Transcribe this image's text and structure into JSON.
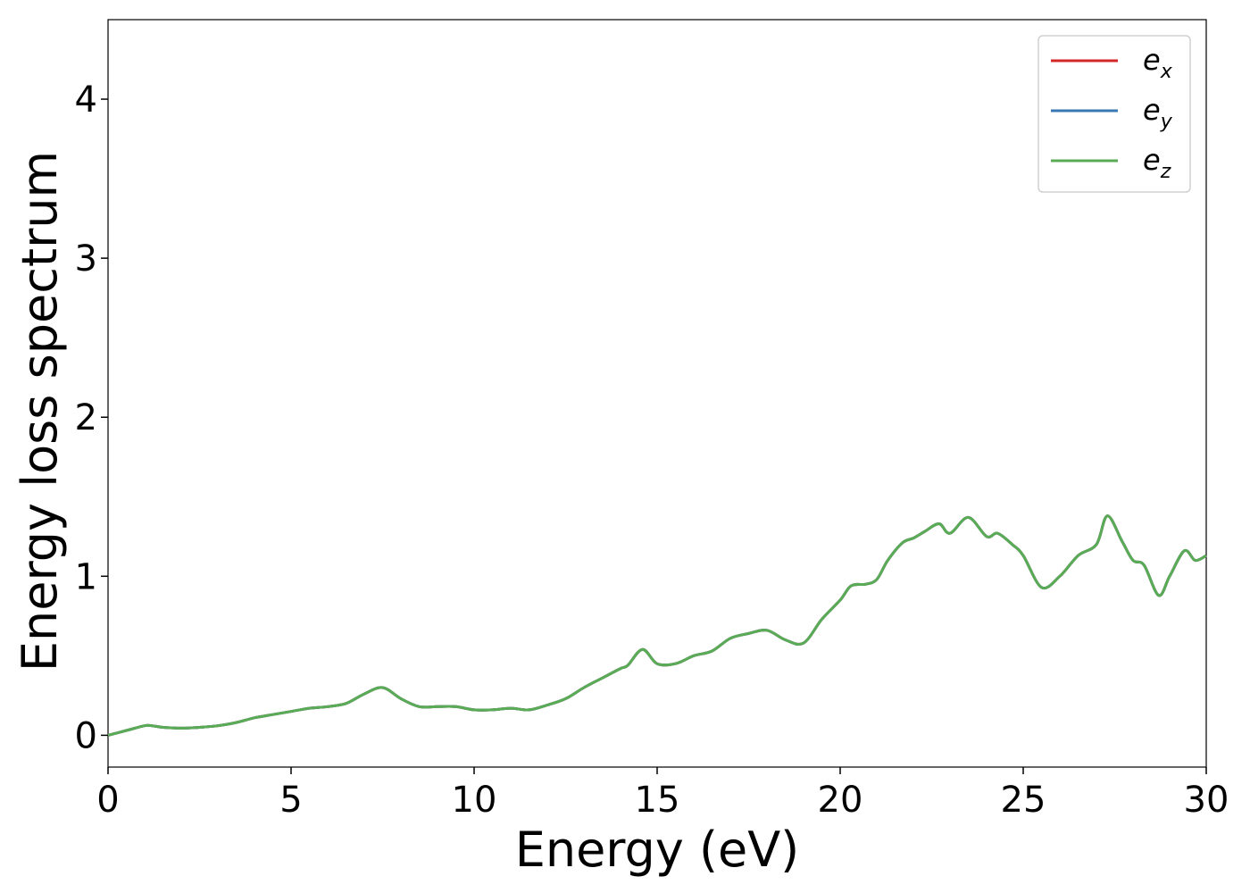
{
  "chart_data": {
    "type": "line",
    "xlabel": "Energy (eV)",
    "ylabel": "Energy loss spectrum",
    "xlim": [
      0,
      30
    ],
    "ylim": [
      -0.2,
      4.5
    ],
    "xticks": [
      "0",
      "5",
      "10",
      "15",
      "20",
      "25",
      "30"
    ],
    "yticks": [
      "0",
      "1",
      "2",
      "3",
      "4"
    ],
    "grid": false,
    "legend_position": "top-right",
    "colors": {
      "e_x": "#d62728",
      "e_y": "#3a78b5",
      "e_z": "#5aab55"
    },
    "series": [
      {
        "name": "e_x",
        "label_base": "e",
        "label_sub": "x",
        "color": "#d62728",
        "x": [
          0,
          0.5,
          1,
          1.2,
          1.5,
          2,
          2.5,
          3,
          3.5,
          4,
          4.5,
          5,
          5.5,
          6,
          6.5,
          7,
          7.5,
          8,
          8.5,
          9,
          9.5,
          10,
          10.5,
          11,
          11.5,
          12,
          12.5,
          13,
          13.5,
          14,
          14.2,
          14.6,
          15,
          15.5,
          16,
          16.5,
          17,
          17.5,
          18,
          18.5,
          19,
          19.5,
          20,
          20.3,
          20.7,
          21,
          21.3,
          21.7,
          22,
          22.3,
          22.7,
          23,
          23.5,
          24,
          24.3,
          24.7,
          25,
          25.5,
          26,
          26.5,
          27,
          27.3,
          27.7,
          28,
          28.3,
          28.7,
          29,
          29.4,
          29.7,
          30
        ],
        "y": [
          0,
          0.03,
          0.06,
          0.06,
          0.05,
          0.045,
          0.05,
          0.06,
          0.08,
          0.11,
          0.13,
          0.15,
          0.17,
          0.18,
          0.2,
          0.26,
          0.3,
          0.23,
          0.18,
          0.18,
          0.18,
          0.16,
          0.16,
          0.17,
          0.16,
          0.19,
          0.23,
          0.3,
          0.36,
          0.42,
          0.44,
          0.54,
          0.45,
          0.45,
          0.5,
          0.53,
          0.61,
          0.64,
          0.66,
          0.6,
          0.58,
          0.73,
          0.85,
          0.94,
          0.95,
          0.98,
          1.1,
          1.21,
          1.24,
          1.28,
          1.33,
          1.27,
          1.37,
          1.25,
          1.27,
          1.2,
          1.13,
          0.93,
          1.0,
          1.13,
          1.2,
          1.38,
          1.22,
          1.1,
          1.07,
          0.88,
          1.0,
          1.16,
          1.1,
          1.13
        ]
      },
      {
        "name": "e_y",
        "label_base": "e",
        "label_sub": "y",
        "color": "#3a78b5",
        "x": [
          0,
          0.5,
          1,
          1.2,
          1.5,
          2,
          2.5,
          3,
          3.5,
          4,
          4.5,
          5,
          5.5,
          6,
          6.5,
          7,
          7.5,
          8,
          8.5,
          9,
          9.5,
          10,
          10.5,
          11,
          11.5,
          12,
          12.5,
          13,
          13.5,
          14,
          14.2,
          14.6,
          15,
          15.5,
          16,
          16.5,
          17,
          17.5,
          18,
          18.5,
          19,
          19.5,
          20,
          20.3,
          20.7,
          21,
          21.3,
          21.7,
          22,
          22.3,
          22.7,
          23,
          23.5,
          24,
          24.3,
          24.7,
          25,
          25.5,
          26,
          26.5,
          27,
          27.3,
          27.7,
          28,
          28.3,
          28.7,
          29,
          29.4,
          29.7,
          30
        ],
        "y": [
          0,
          0.03,
          0.06,
          0.06,
          0.05,
          0.045,
          0.05,
          0.06,
          0.08,
          0.11,
          0.13,
          0.15,
          0.17,
          0.18,
          0.2,
          0.26,
          0.3,
          0.23,
          0.18,
          0.18,
          0.18,
          0.16,
          0.16,
          0.17,
          0.16,
          0.19,
          0.23,
          0.3,
          0.36,
          0.42,
          0.44,
          0.54,
          0.45,
          0.45,
          0.5,
          0.53,
          0.61,
          0.64,
          0.66,
          0.6,
          0.58,
          0.73,
          0.85,
          0.94,
          0.95,
          0.98,
          1.1,
          1.21,
          1.24,
          1.28,
          1.33,
          1.27,
          1.37,
          1.25,
          1.27,
          1.2,
          1.13,
          0.93,
          1.0,
          1.13,
          1.2,
          1.38,
          1.22,
          1.1,
          1.07,
          0.88,
          1.0,
          1.16,
          1.1,
          1.13
        ]
      },
      {
        "name": "e_z",
        "label_base": "e",
        "label_sub": "z",
        "color": "#5aab55",
        "x": [
          0,
          0.5,
          1,
          1.2,
          1.5,
          2,
          2.5,
          3,
          3.5,
          4,
          4.5,
          5,
          5.5,
          6,
          6.5,
          7,
          7.5,
          8,
          8.5,
          9,
          9.5,
          10,
          10.5,
          11,
          11.5,
          12,
          12.5,
          13,
          13.5,
          14,
          14.2,
          14.6,
          15,
          15.5,
          16,
          16.5,
          17,
          17.5,
          18,
          18.5,
          19,
          19.5,
          20,
          20.3,
          20.7,
          21,
          21.3,
          21.7,
          22,
          22.3,
          22.7,
          23,
          23.5,
          24,
          24.3,
          24.7,
          25,
          25.5,
          26,
          26.5,
          27,
          27.3,
          27.7,
          28,
          28.3,
          28.7,
          29,
          29.4,
          29.7,
          30
        ],
        "y": [
          0,
          0.03,
          0.06,
          0.06,
          0.05,
          0.045,
          0.05,
          0.06,
          0.08,
          0.11,
          0.13,
          0.15,
          0.17,
          0.18,
          0.2,
          0.26,
          0.3,
          0.23,
          0.18,
          0.18,
          0.18,
          0.16,
          0.16,
          0.17,
          0.16,
          0.19,
          0.23,
          0.3,
          0.36,
          0.42,
          0.44,
          0.54,
          0.45,
          0.45,
          0.5,
          0.53,
          0.61,
          0.64,
          0.66,
          0.6,
          0.58,
          0.73,
          0.85,
          0.94,
          0.95,
          0.98,
          1.1,
          1.21,
          1.24,
          1.28,
          1.33,
          1.27,
          1.37,
          1.25,
          1.27,
          1.2,
          1.13,
          0.93,
          1.0,
          1.13,
          1.2,
          1.38,
          1.22,
          1.1,
          1.07,
          0.88,
          1.0,
          1.16,
          1.1,
          1.13
        ]
      }
    ]
  }
}
